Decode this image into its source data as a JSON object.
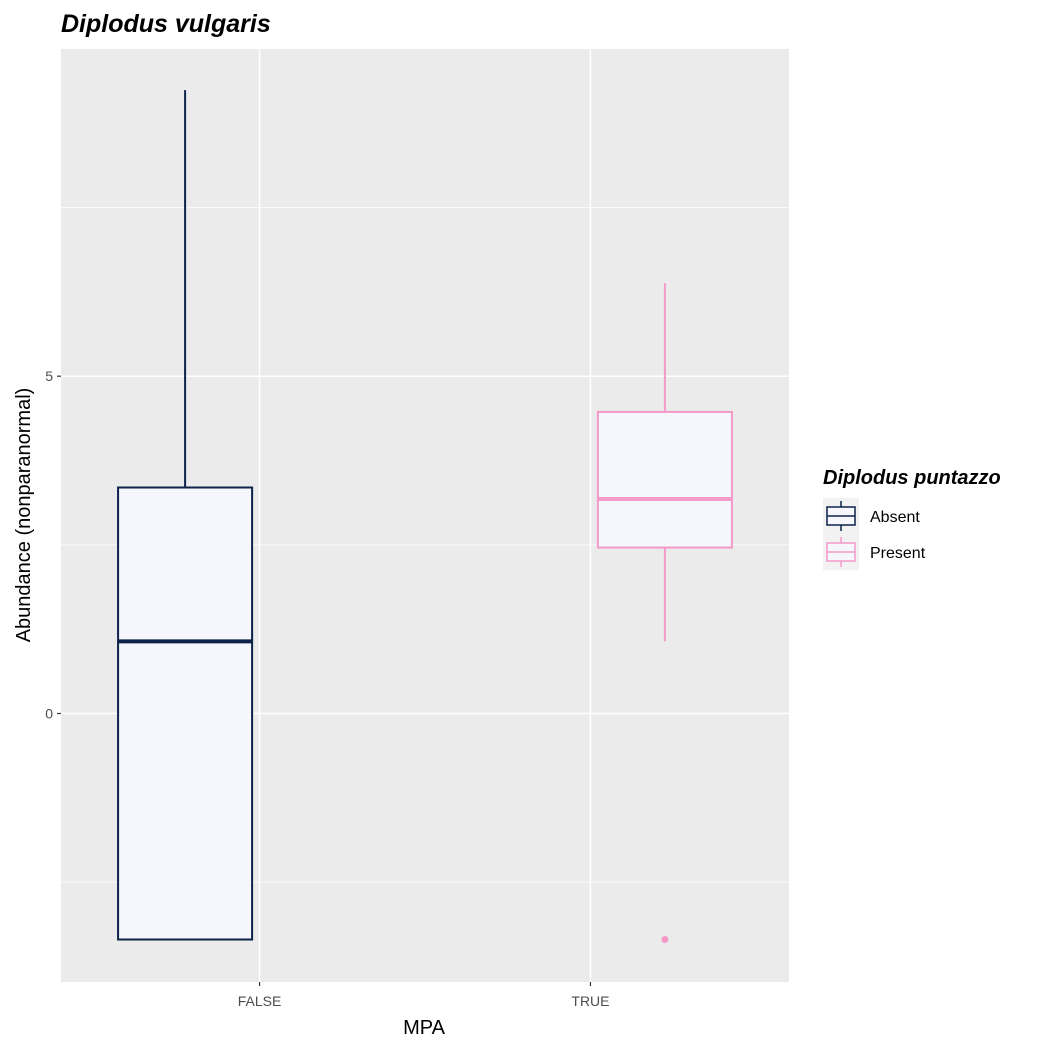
{
  "chart_data": {
    "type": "boxplot",
    "title": "Diplodus vulgaris",
    "xlabel": "MPA",
    "ylabel": "Abundance (nonparanormal)",
    "categories": [
      "FALSE",
      "TRUE"
    ],
    "y_ticks": [
      0,
      5
    ],
    "y_tick_labels": [
      "0",
      "5"
    ],
    "ylim": [
      -3.98,
      9.85
    ],
    "grid": true,
    "legend": {
      "title": "Diplodus puntazzo",
      "position": "right",
      "entries": [
        "Absent",
        "Present"
      ]
    },
    "series": [
      {
        "name": "Absent",
        "color": "#0d2349",
        "fill": "#f5f7fc",
        "boxes": [
          {
            "category": "FALSE",
            "min": -3.35,
            "q1": -3.35,
            "median": 1.07,
            "q3": 3.35,
            "max": 9.24,
            "outliers": []
          }
        ]
      },
      {
        "name": "Present",
        "color": "#f49ac9",
        "fill": "#f5f7fc",
        "boxes": [
          {
            "category": "TRUE",
            "min": 1.07,
            "q1": 2.46,
            "median": 3.18,
            "q3": 4.47,
            "max": 6.38,
            "outliers": [
              -3.35
            ]
          }
        ]
      }
    ]
  }
}
